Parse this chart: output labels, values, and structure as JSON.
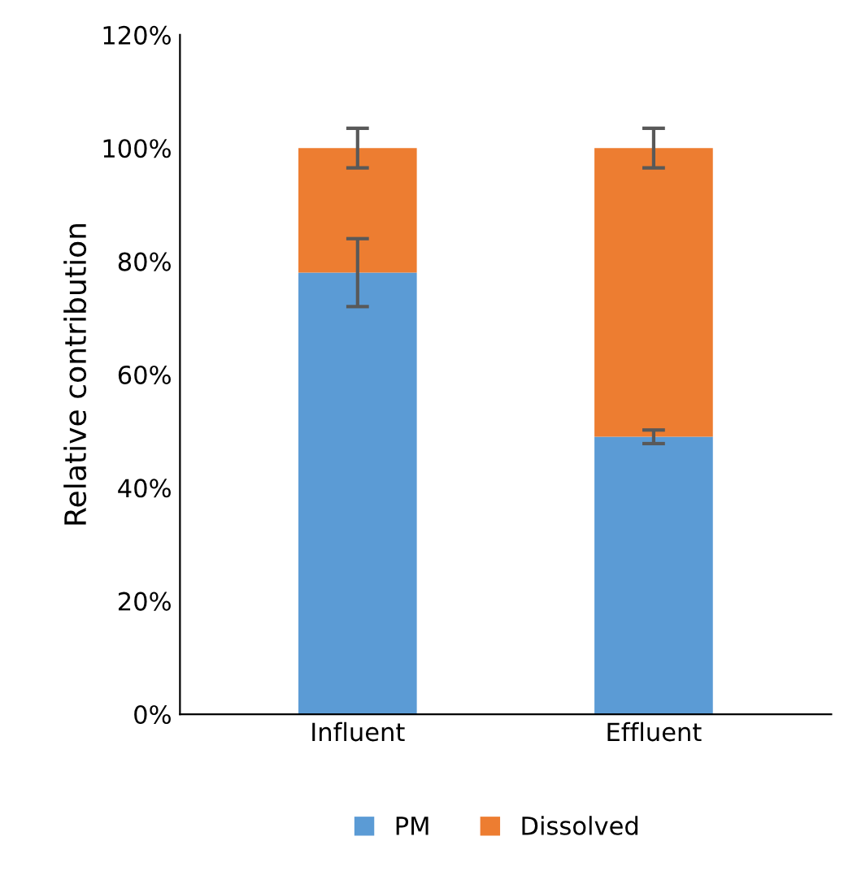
{
  "chart_data": {
    "type": "bar",
    "stacked": true,
    "ylabel": "Relative contribution",
    "categories": [
      "Influent",
      "Effluent"
    ],
    "series": [
      {
        "name": "PM",
        "color": "#5b9bd5",
        "values": [
          78,
          49
        ],
        "errors": [
          6,
          1.2
        ]
      },
      {
        "name": "Dissolved",
        "color": "#ed7d31",
        "values": [
          22,
          51
        ],
        "errors": [
          3.5,
          3.5
        ]
      }
    ],
    "ylim": [
      0,
      120
    ],
    "yticks": [
      {
        "value": 0,
        "label": "0%"
      },
      {
        "value": 20,
        "label": "20%"
      },
      {
        "value": 40,
        "label": "40%"
      },
      {
        "value": 60,
        "label": "60%"
      },
      {
        "value": 80,
        "label": "80%"
      },
      {
        "value": 100,
        "label": "100%"
      },
      {
        "value": 120,
        "label": "120%"
      }
    ],
    "grid": false,
    "legend": "bottom"
  }
}
